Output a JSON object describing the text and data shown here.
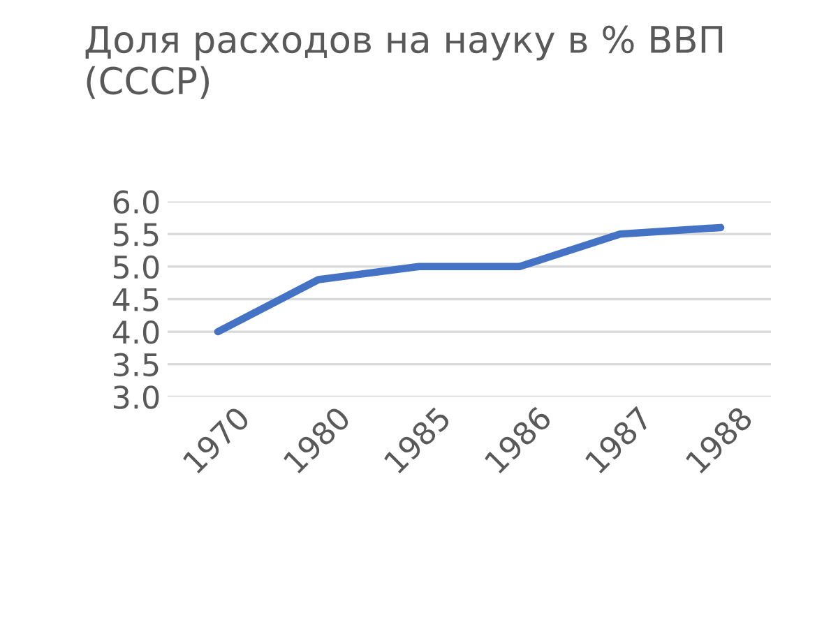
{
  "chart_data": {
    "type": "line",
    "title": "Доля расходов на науку в % ВВП (СССР)",
    "categories": [
      "1970",
      "1980",
      "1985",
      "1986",
      "1987",
      "1988"
    ],
    "series": [
      {
        "color": "#4472c4",
        "values": [
          4.0,
          4.8,
          5.0,
          5.0,
          5.5,
          5.6
        ]
      }
    ],
    "ylim": [
      3.0,
      6.0
    ],
    "yticks": [
      {
        "value": 3.0,
        "label": "3.0"
      },
      {
        "value": 3.5,
        "label": "3.5"
      },
      {
        "value": 4.0,
        "label": "4.0"
      },
      {
        "value": 4.5,
        "label": "4.5"
      },
      {
        "value": 5.0,
        "label": "5.0"
      },
      {
        "value": 5.5,
        "label": "5.5"
      },
      {
        "value": 6.0,
        "label": "6.0"
      }
    ],
    "grid": "y",
    "legend": false,
    "marker": "none",
    "line_style": "solid"
  }
}
